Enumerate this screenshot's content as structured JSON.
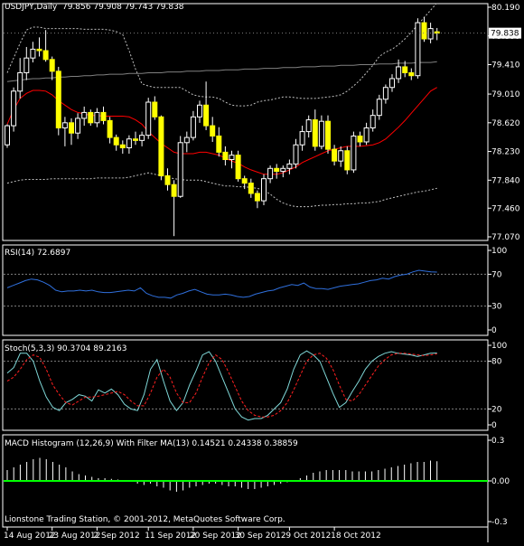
{
  "chart_data": [
    {
      "type": "candlestick",
      "title": "USDJPY,Daily",
      "ohlc_label": "79.856 79.908 79.743 79.838",
      "ylim": [
        77.07,
        80.19
      ],
      "yticks": [
        "80.190",
        "79.800",
        "79.410",
        "79.010",
        "78.620",
        "78.230",
        "77.840",
        "77.460",
        "77.070"
      ],
      "last_price_label": "79.838",
      "last_price": 79.838,
      "overlays": [
        {
          "name": "Bollinger upper",
          "color": "#c0c0c0",
          "style": "dotted",
          "values": [
            79.3,
            79.5,
            79.7,
            79.88,
            79.92,
            79.92,
            79.9,
            79.9,
            79.9,
            79.9,
            79.9,
            79.9,
            79.89,
            79.89,
            79.89,
            79.89,
            79.88,
            79.86,
            79.82,
            79.6,
            79.35,
            79.15,
            79.12,
            79.1,
            79.1,
            79.1,
            79.1,
            79.1,
            79.05,
            79.0,
            78.98,
            78.97,
            78.97,
            78.95,
            78.9,
            78.86,
            78.85,
            78.85,
            78.86,
            78.9,
            78.92,
            78.93,
            78.95,
            78.97,
            78.97,
            78.96,
            78.95,
            78.95,
            78.95,
            78.96,
            78.97,
            78.98,
            79.0,
            79.05,
            79.12,
            79.2,
            79.3,
            79.4,
            79.52,
            79.58,
            79.62,
            79.68,
            79.76,
            79.85,
            79.95,
            80.05,
            80.15,
            80.25
          ]
        },
        {
          "name": "Bollinger middle",
          "color": "#808080",
          "style": "solid",
          "values": [
            79.18,
            79.19,
            79.2,
            79.21,
            79.22,
            79.22,
            79.23,
            79.23,
            79.24,
            79.24,
            79.25,
            79.25,
            79.26,
            79.26,
            79.27,
            79.27,
            79.28,
            79.28,
            79.28,
            79.29,
            79.29,
            79.29,
            79.3,
            79.3,
            79.3,
            79.31,
            79.31,
            79.31,
            79.32,
            79.32,
            79.32,
            79.33,
            79.33,
            79.33,
            79.34,
            79.34,
            79.34,
            79.35,
            79.35,
            79.35,
            79.36,
            79.36,
            79.36,
            79.37,
            79.37,
            79.37,
            79.38,
            79.38,
            79.38,
            79.39,
            79.39,
            79.39,
            79.4,
            79.4,
            79.4,
            79.41,
            79.41,
            79.41,
            79.42,
            79.42,
            79.42,
            79.43,
            79.43,
            79.43,
            79.44,
            79.44,
            79.44,
            79.45
          ]
        },
        {
          "name": "Bollinger lower",
          "color": "#c0c0c0",
          "style": "dotted",
          "values": [
            77.8,
            77.82,
            77.84,
            77.85,
            77.85,
            77.85,
            77.85,
            77.86,
            77.86,
            77.86,
            77.86,
            77.86,
            77.86,
            77.86,
            77.87,
            77.87,
            77.87,
            77.87,
            77.87,
            77.88,
            77.9,
            77.92,
            77.94,
            77.92,
            77.9,
            77.88,
            77.86,
            77.85,
            77.84,
            77.84,
            77.84,
            77.82,
            77.8,
            77.78,
            77.76,
            77.76,
            77.75,
            77.75,
            77.74,
            77.73,
            77.7,
            77.65,
            77.58,
            77.53,
            77.5,
            77.48,
            77.48,
            77.48,
            77.49,
            77.5,
            77.5,
            77.51,
            77.51,
            77.52,
            77.52,
            77.53,
            77.53,
            77.54,
            77.55,
            77.58,
            77.6,
            77.62,
            77.64,
            77.66,
            77.68,
            77.69,
            77.71,
            77.73
          ]
        },
        {
          "name": "MA",
          "color": "#ff0000",
          "style": "solid",
          "values": [
            78.6,
            78.8,
            78.95,
            79.02,
            79.06,
            79.06,
            79.05,
            79.0,
            78.92,
            78.86,
            78.8,
            78.76,
            78.74,
            78.72,
            78.72,
            78.71,
            78.71,
            78.71,
            78.71,
            78.7,
            78.66,
            78.6,
            78.5,
            78.42,
            78.34,
            78.28,
            78.22,
            78.2,
            78.2,
            78.2,
            78.22,
            78.22,
            78.2,
            78.18,
            78.14,
            78.1,
            78.07,
            78.02,
            77.98,
            77.95,
            77.92,
            77.92,
            77.92,
            77.94,
            77.98,
            78.02,
            78.08,
            78.12,
            78.16,
            78.2,
            78.24,
            78.26,
            78.28,
            78.3,
            78.3,
            78.3,
            78.31,
            78.32,
            78.35,
            78.4,
            78.48,
            78.56,
            78.65,
            78.75,
            78.85,
            78.95,
            79.05,
            79.1
          ]
        }
      ],
      "candles": [
        {
          "o": 78.32,
          "h": 78.6,
          "l": 78.28,
          "c": 78.58
        },
        {
          "o": 78.58,
          "h": 79.1,
          "l": 78.5,
          "c": 79.05
        },
        {
          "o": 79.05,
          "h": 79.5,
          "l": 78.95,
          "c": 79.3
        },
        {
          "o": 79.3,
          "h": 79.65,
          "l": 79.2,
          "c": 79.5
        },
        {
          "o": 79.5,
          "h": 79.72,
          "l": 79.44,
          "c": 79.62
        },
        {
          "o": 79.62,
          "h": 79.78,
          "l": 79.52,
          "c": 79.6
        },
        {
          "o": 79.6,
          "h": 79.88,
          "l": 79.45,
          "c": 79.48
        },
        {
          "o": 79.48,
          "h": 79.52,
          "l": 79.2,
          "c": 79.32
        },
        {
          "o": 79.32,
          "h": 79.38,
          "l": 78.45,
          "c": 78.55
        },
        {
          "o": 78.55,
          "h": 78.7,
          "l": 78.3,
          "c": 78.62
        },
        {
          "o": 78.62,
          "h": 78.68,
          "l": 78.32,
          "c": 78.48
        },
        {
          "o": 78.48,
          "h": 78.75,
          "l": 78.4,
          "c": 78.68
        },
        {
          "o": 78.68,
          "h": 78.84,
          "l": 78.58,
          "c": 78.76
        },
        {
          "o": 78.76,
          "h": 78.8,
          "l": 78.58,
          "c": 78.62
        },
        {
          "o": 78.62,
          "h": 78.82,
          "l": 78.56,
          "c": 78.76
        },
        {
          "o": 78.76,
          "h": 78.84,
          "l": 78.6,
          "c": 78.65
        },
        {
          "o": 78.65,
          "h": 78.7,
          "l": 78.34,
          "c": 78.42
        },
        {
          "o": 78.42,
          "h": 78.46,
          "l": 78.24,
          "c": 78.32
        },
        {
          "o": 78.32,
          "h": 78.38,
          "l": 78.2,
          "c": 78.28
        },
        {
          "o": 78.28,
          "h": 78.45,
          "l": 78.2,
          "c": 78.4
        },
        {
          "o": 78.4,
          "h": 78.5,
          "l": 78.32,
          "c": 78.38
        },
        {
          "o": 78.38,
          "h": 78.5,
          "l": 78.3,
          "c": 78.45
        },
        {
          "o": 78.45,
          "h": 78.96,
          "l": 78.4,
          "c": 78.9
        },
        {
          "o": 78.9,
          "h": 78.98,
          "l": 78.66,
          "c": 78.7
        },
        {
          "o": 78.7,
          "h": 78.72,
          "l": 77.84,
          "c": 77.9
        },
        {
          "o": 77.9,
          "h": 78.0,
          "l": 77.7,
          "c": 77.78
        },
        {
          "o": 77.78,
          "h": 77.84,
          "l": 77.08,
          "c": 77.62
        },
        {
          "o": 77.62,
          "h": 78.44,
          "l": 77.6,
          "c": 78.35
        },
        {
          "o": 78.35,
          "h": 78.5,
          "l": 78.22,
          "c": 78.42
        },
        {
          "o": 78.42,
          "h": 78.78,
          "l": 78.38,
          "c": 78.7
        },
        {
          "o": 78.7,
          "h": 78.92,
          "l": 78.62,
          "c": 78.86
        },
        {
          "o": 78.86,
          "h": 79.18,
          "l": 78.52,
          "c": 78.58
        },
        {
          "o": 78.58,
          "h": 78.7,
          "l": 78.36,
          "c": 78.44
        },
        {
          "o": 78.44,
          "h": 78.56,
          "l": 78.16,
          "c": 78.22
        },
        {
          "o": 78.22,
          "h": 78.3,
          "l": 78.04,
          "c": 78.12
        },
        {
          "o": 78.12,
          "h": 78.24,
          "l": 78.0,
          "c": 78.18
        },
        {
          "o": 78.18,
          "h": 78.24,
          "l": 77.82,
          "c": 77.86
        },
        {
          "o": 77.86,
          "h": 77.9,
          "l": 77.72,
          "c": 77.8
        },
        {
          "o": 77.8,
          "h": 77.86,
          "l": 77.6,
          "c": 77.66
        },
        {
          "o": 77.66,
          "h": 77.7,
          "l": 77.46,
          "c": 77.56
        },
        {
          "o": 77.56,
          "h": 77.92,
          "l": 77.5,
          "c": 77.86
        },
        {
          "o": 77.86,
          "h": 78.04,
          "l": 77.8,
          "c": 78.0
        },
        {
          "o": 78.0,
          "h": 78.06,
          "l": 77.86,
          "c": 77.96
        },
        {
          "o": 77.96,
          "h": 78.04,
          "l": 77.88,
          "c": 78.0
        },
        {
          "o": 78.0,
          "h": 78.12,
          "l": 77.92,
          "c": 78.06
        },
        {
          "o": 78.06,
          "h": 78.4,
          "l": 78.0,
          "c": 78.32
        },
        {
          "o": 78.32,
          "h": 78.58,
          "l": 78.24,
          "c": 78.5
        },
        {
          "o": 78.5,
          "h": 78.72,
          "l": 78.42,
          "c": 78.66
        },
        {
          "o": 78.66,
          "h": 78.8,
          "l": 78.24,
          "c": 78.3
        },
        {
          "o": 78.3,
          "h": 78.72,
          "l": 78.26,
          "c": 78.64
        },
        {
          "o": 78.64,
          "h": 78.72,
          "l": 78.2,
          "c": 78.26
        },
        {
          "o": 78.26,
          "h": 78.32,
          "l": 78.04,
          "c": 78.1
        },
        {
          "o": 78.1,
          "h": 78.3,
          "l": 78.02,
          "c": 78.24
        },
        {
          "o": 78.24,
          "h": 78.3,
          "l": 77.92,
          "c": 77.98
        },
        {
          "o": 77.98,
          "h": 78.5,
          "l": 77.94,
          "c": 78.44
        },
        {
          "o": 78.44,
          "h": 78.5,
          "l": 78.3,
          "c": 78.36
        },
        {
          "o": 78.36,
          "h": 78.62,
          "l": 78.32,
          "c": 78.55
        },
        {
          "o": 78.55,
          "h": 78.8,
          "l": 78.5,
          "c": 78.72
        },
        {
          "o": 78.72,
          "h": 79.0,
          "l": 78.66,
          "c": 78.94
        },
        {
          "o": 78.94,
          "h": 79.14,
          "l": 78.88,
          "c": 79.1
        },
        {
          "o": 79.1,
          "h": 79.28,
          "l": 79.04,
          "c": 79.22
        },
        {
          "o": 79.22,
          "h": 79.48,
          "l": 79.16,
          "c": 79.38
        },
        {
          "o": 79.38,
          "h": 79.46,
          "l": 79.24,
          "c": 79.3
        },
        {
          "o": 79.3,
          "h": 79.36,
          "l": 79.2,
          "c": 79.26
        },
        {
          "o": 79.26,
          "h": 80.04,
          "l": 79.22,
          "c": 79.98
        },
        {
          "o": 79.98,
          "h": 80.06,
          "l": 79.72,
          "c": 79.76
        },
        {
          "o": 79.76,
          "h": 79.98,
          "l": 79.7,
          "c": 79.9
        },
        {
          "o": 79.856,
          "h": 79.908,
          "l": 79.743,
          "c": 79.838
        }
      ]
    },
    {
      "type": "line",
      "title": "RSI(14) 72.6897",
      "ylim": [
        0,
        100
      ],
      "yticks": [
        "100",
        "70",
        "30",
        "0"
      ],
      "levels": [
        70,
        30
      ],
      "series": [
        {
          "color": "#2f6fdc",
          "values": [
            53,
            56,
            59,
            62,
            64,
            63,
            60,
            56,
            50,
            48,
            49,
            49,
            50,
            49,
            50,
            48,
            47,
            47,
            48,
            49,
            50,
            49,
            53,
            46,
            43,
            41,
            41,
            40,
            44,
            46,
            49,
            51,
            48,
            45,
            44,
            44,
            45,
            44,
            42,
            41,
            42,
            45,
            47,
            49,
            50,
            53,
            55,
            57,
            56,
            59,
            54,
            52,
            52,
            51,
            53,
            55,
            56,
            57,
            58,
            60,
            62,
            63,
            65,
            64,
            67,
            69,
            70,
            73,
            75,
            74,
            73,
            72.69
          ]
        }
      ]
    },
    {
      "type": "line",
      "title": "Stoch(5,3,3) 90.3704 89.2163",
      "ylim": [
        0,
        100
      ],
      "yticks": [
        "100",
        "80",
        "20",
        "0"
      ],
      "levels": [
        80,
        20
      ],
      "series": [
        {
          "color": "#7fd8d8",
          "values": [
            65,
            72,
            90,
            90,
            80,
            55,
            35,
            22,
            18,
            28,
            32,
            38,
            36,
            30,
            44,
            40,
            45,
            38,
            26,
            20,
            18,
            38,
            70,
            82,
            55,
            30,
            18,
            28,
            50,
            68,
            88,
            92,
            80,
            60,
            40,
            20,
            10,
            6,
            8,
            8,
            12,
            20,
            28,
            45,
            70,
            88,
            93,
            88,
            80,
            60,
            40,
            22,
            28,
            42,
            55,
            70,
            80,
            86,
            90,
            92,
            90,
            89,
            88,
            86,
            88,
            90,
            90.37
          ]
        },
        {
          "color": "#ff2020",
          "style": "dashed",
          "values": [
            55,
            60,
            70,
            82,
            88,
            85,
            70,
            50,
            38,
            28,
            25,
            30,
            35,
            35,
            36,
            38,
            40,
            42,
            38,
            30,
            24,
            24,
            40,
            60,
            70,
            60,
            40,
            28,
            28,
            40,
            60,
            78,
            88,
            82,
            66,
            48,
            30,
            18,
            12,
            10,
            10,
            12,
            18,
            28,
            44,
            62,
            80,
            88,
            90,
            84,
            70,
            50,
            32,
            30,
            38,
            50,
            62,
            74,
            82,
            88,
            90,
            90,
            89,
            88,
            87,
            88,
            89.22
          ]
        }
      ]
    },
    {
      "type": "bar",
      "title": "MACD Histogram (12,26,9) With Filter MA(13) 0.14521 0.24338 0.38859",
      "ylim": [
        -0.3,
        0.3
      ],
      "yticks": [
        "0.3",
        "0.00",
        "-0.3"
      ],
      "zero_line_color": "#00ff00",
      "values": [
        0.08,
        0.1,
        0.12,
        0.14,
        0.16,
        0.17,
        0.16,
        0.14,
        0.12,
        0.1,
        0.07,
        0.05,
        0.04,
        0.03,
        0.02,
        0.02,
        0.015,
        0.01,
        0.0,
        0.0,
        -0.02,
        -0.03,
        -0.02,
        -0.04,
        -0.05,
        -0.07,
        -0.08,
        -0.07,
        -0.05,
        -0.04,
        -0.03,
        -0.02,
        -0.02,
        -0.03,
        -0.04,
        -0.04,
        -0.05,
        -0.06,
        -0.06,
        -0.05,
        -0.04,
        -0.03,
        -0.02,
        -0.01,
        0.0,
        0.02,
        0.04,
        0.06,
        0.07,
        0.08,
        0.08,
        0.08,
        0.08,
        0.07,
        0.07,
        0.07,
        0.07,
        0.08,
        0.09,
        0.1,
        0.11,
        0.12,
        0.13,
        0.14,
        0.14,
        0.15,
        0.145
      ]
    }
  ],
  "x_axis": {
    "ticks": [
      "14 Aug 2012",
      "23 Aug 2012",
      "2 Sep 2012",
      "11 Sep 2012",
      "20 Sep 2012",
      "30 Sep 2012",
      "9 Oct 2012",
      "18 Oct 2012"
    ],
    "tick_candles": [
      0,
      7,
      14,
      22,
      29,
      36,
      44,
      51
    ]
  },
  "footer": {
    "copyright": "Lionstone Trading Station, © 2001-2012, MetaQuotes Software Corp."
  }
}
